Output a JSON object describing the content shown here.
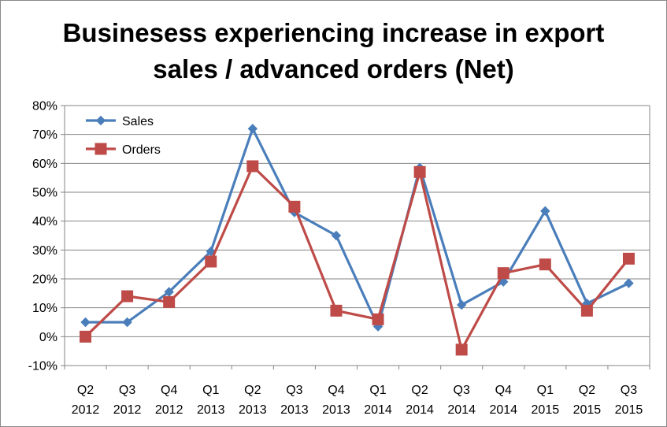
{
  "chart_data": {
    "type": "line",
    "title_lines": [
      "Businesess experiencing increase in export",
      "sales / advanced orders (Net)"
    ],
    "categories": [
      [
        "Q2",
        "2012"
      ],
      [
        "Q3",
        "2012"
      ],
      [
        "Q4",
        "2012"
      ],
      [
        "Q1",
        "2013"
      ],
      [
        "Q2",
        "2013"
      ],
      [
        "Q3",
        "2013"
      ],
      [
        "Q4",
        "2013"
      ],
      [
        "Q1",
        "2014"
      ],
      [
        "Q2",
        "2014"
      ],
      [
        "Q3",
        "2014"
      ],
      [
        "Q4",
        "2014"
      ],
      [
        "Q1",
        "2015"
      ],
      [
        "Q2",
        "2015"
      ],
      [
        "Q3",
        "2015"
      ]
    ],
    "series": [
      {
        "name": "Sales",
        "marker": "diamond",
        "color": "#4A7EBB",
        "values": [
          5,
          5,
          15.5,
          29.5,
          72,
          43,
          35,
          3.5,
          58.5,
          11,
          19,
          43.5,
          11.5,
          18.5
        ]
      },
      {
        "name": "Orders",
        "marker": "square",
        "color": "#BE4B48",
        "values": [
          0,
          14,
          12,
          26,
          59,
          45,
          9,
          6,
          57,
          -4.5,
          22,
          25,
          9,
          27
        ]
      }
    ],
    "ylim": [
      -10,
      80
    ],
    "ytick_step": 10,
    "ytick_suffix": "%",
    "gridlines": true,
    "legend_position": "top-left"
  }
}
